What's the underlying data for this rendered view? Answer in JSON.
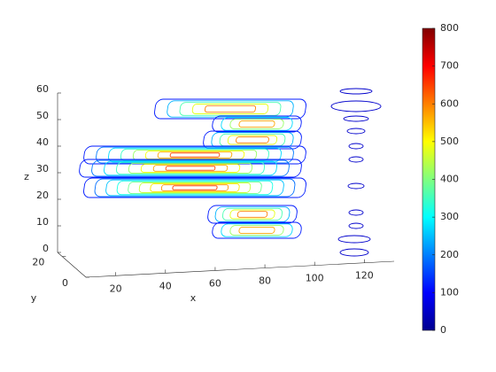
{
  "chart_data": {
    "type": "contourslice",
    "xlabel": "x",
    "ylabel": "y",
    "zlabel": "z",
    "xlim": [
      8,
      132
    ],
    "xticks": [
      20,
      40,
      60,
      80,
      100,
      120
    ],
    "ylim": [
      0,
      24
    ],
    "yticks": [
      0,
      20
    ],
    "zlim": [
      0,
      60
    ],
    "zticks": [
      0,
      10,
      20,
      30,
      40,
      50,
      60
    ],
    "colormap": "jet",
    "clim": [
      0,
      800
    ],
    "cticks": [
      0,
      100,
      200,
      300,
      400,
      500,
      600,
      700,
      800
    ]
  }
}
